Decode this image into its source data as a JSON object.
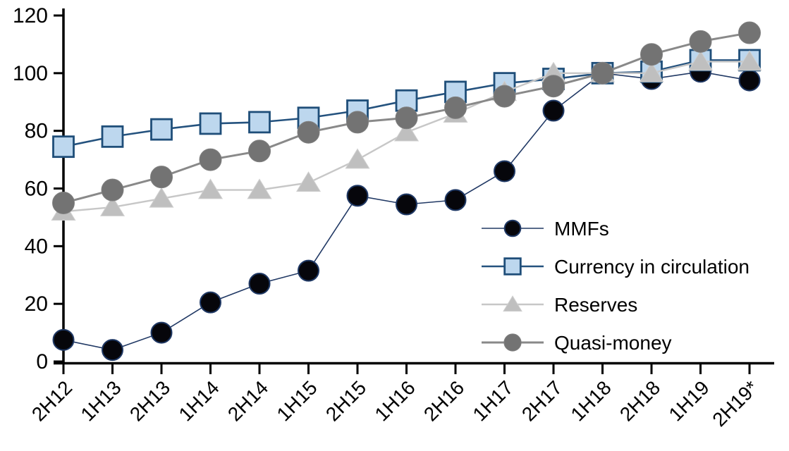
{
  "chart_data": {
    "type": "line",
    "title": "",
    "xlabel": "",
    "ylabel": "",
    "categories": [
      "2H12",
      "1H13",
      "2H13",
      "1H14",
      "2H14",
      "1H15",
      "2H15",
      "1H16",
      "2H16",
      "1H17",
      "2H17",
      "1H18",
      "2H18",
      "1H19",
      "2H19*"
    ],
    "series": [
      {
        "name": "MMFs",
        "marker": "circle",
        "line_color": "#203864",
        "line_width": 1.6,
        "marker_fill": "#06060b",
        "marker_stroke": "#1F3864",
        "marker_stroke_width": 2,
        "marker_size": 14.5,
        "values": [
          7.5,
          4,
          10,
          20.5,
          27,
          31.5,
          57.5,
          54.5,
          56,
          66,
          87,
          100,
          98,
          100.5,
          97.5
        ]
      },
      {
        "name": "Currency in circulation",
        "marker": "square",
        "line_color": "#24527E",
        "line_width": 2.6,
        "marker_fill": "#BDD7EE",
        "marker_stroke": "#1F4E79",
        "marker_stroke_width": 2.8,
        "marker_size": 14.5,
        "values": [
          74.5,
          78,
          80.5,
          82.5,
          83,
          84.5,
          87,
          90.5,
          93.5,
          96.5,
          98,
          100,
          100.5,
          104.5,
          104.5
        ]
      },
      {
        "name": "Reserves",
        "marker": "triangle",
        "line_color": "#C7C7C7",
        "line_width": 2.4,
        "marker_fill": "#BFBFBF",
        "marker_stroke": "#CFCFCF",
        "marker_stroke_width": 1,
        "marker_size": 14.5,
        "values": [
          52,
          53.5,
          56.5,
          59.5,
          59.5,
          62,
          70,
          79.5,
          86,
          93.5,
          100,
          100,
          100,
          104,
          104
        ]
      },
      {
        "name": "Quasi-money",
        "marker": "circle",
        "line_color": "#898989",
        "line_width": 3,
        "marker_fill": "#737373",
        "marker_stroke": "#808080",
        "marker_stroke_width": 1,
        "marker_size": 15.5,
        "values": [
          55,
          59.5,
          64,
          70,
          73,
          79.5,
          83,
          84.5,
          88,
          92,
          95.5,
          100,
          106.5,
          111,
          114
        ]
      }
    ],
    "ylim": [
      0,
      120
    ],
    "yticks": [
      0,
      20,
      40,
      60,
      80,
      100,
      120
    ],
    "grid": false,
    "legend_position": "inside-right",
    "axis_color": "#000000",
    "text_color": "#000000"
  }
}
